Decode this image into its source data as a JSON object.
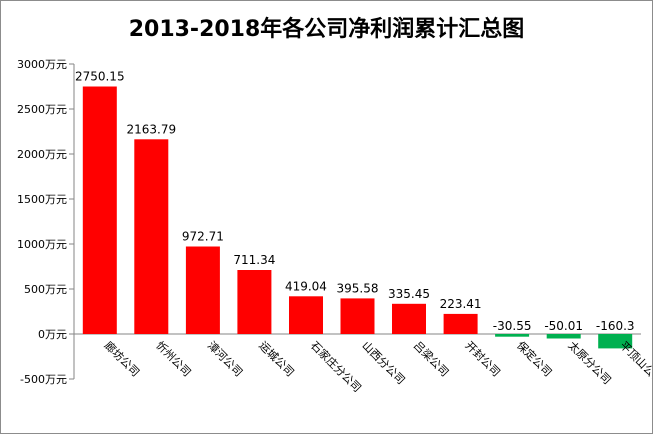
{
  "chart_data": {
    "type": "bar",
    "title": "2013-2018年各公司净利润累计汇总图",
    "xlabel": "",
    "ylabel": "",
    "categories": [
      "廊坊公司",
      "忻州公司",
      "漳河公司",
      "运城公司",
      "石家庄分公司",
      "山西分公司",
      "吕梁公司",
      "开封公司",
      "保定公司",
      "太原分公司",
      "平顶山公司"
    ],
    "values": [
      2750.15,
      2163.79,
      972.71,
      711.34,
      419.04,
      395.58,
      335.45,
      223.41,
      -30.55,
      -50.01,
      -160.3
    ],
    "data_labels": [
      "2750.15",
      "2163.79",
      "972.71",
      "711.34",
      "419.04",
      "395.58",
      "335.45",
      "223.41",
      "-30.55",
      "-50.01",
      "-160.3"
    ],
    "ylim": [
      -500,
      3000
    ],
    "ytick_values": [
      3000,
      2500,
      2000,
      1500,
      1000,
      500,
      0,
      -500
    ],
    "ytick_labels": [
      "3000万元",
      "2500万元",
      "2000万元",
      "1500万元",
      "1000万元",
      "500万元",
      "0万元",
      "-500万元"
    ],
    "colors": {
      "positive": "#ff0000",
      "negative": "#00b050"
    },
    "grid": false,
    "legend": "none"
  }
}
